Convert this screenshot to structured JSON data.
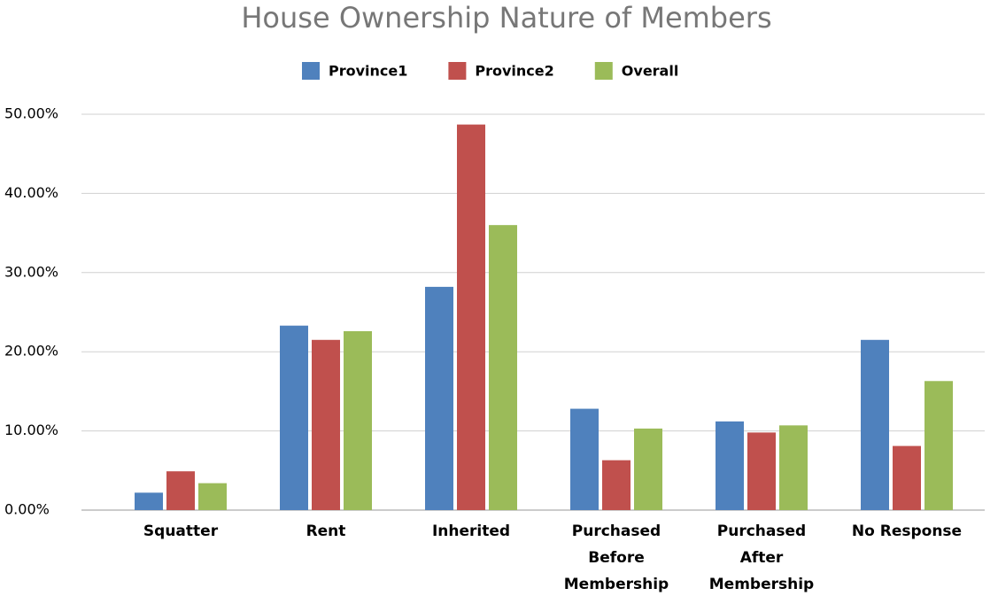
{
  "chart_data": {
    "type": "bar",
    "title": "House Ownership Nature of Members",
    "categories": [
      [
        "Squatter"
      ],
      [
        "Rent"
      ],
      [
        "Inherited"
      ],
      [
        "Purchased",
        "Before",
        "Membership"
      ],
      [
        "Purchased",
        "After",
        "Membership"
      ],
      [
        "No Response"
      ]
    ],
    "series": [
      {
        "name": "Province1",
        "color": "#4f81bd",
        "values": [
          2.2,
          23.3,
          28.2,
          12.8,
          11.2,
          21.5
        ]
      },
      {
        "name": "Province2",
        "color": "#c0504d",
        "values": [
          4.9,
          21.5,
          48.7,
          6.3,
          9.8,
          8.1
        ]
      },
      {
        "name": "Overall",
        "color": "#9bbb59",
        "values": [
          3.4,
          22.6,
          36.0,
          10.3,
          10.7,
          16.3
        ]
      }
    ],
    "ylim": [
      0,
      50
    ],
    "yticks": [
      {
        "value": 0,
        "label": "0.00%"
      },
      {
        "value": 10,
        "label": "10.00%"
      },
      {
        "value": 20,
        "label": "20.00%"
      },
      {
        "value": 30,
        "label": "30.00%"
      },
      {
        "value": 40,
        "label": "40.00%"
      },
      {
        "value": 50,
        "label": "50.00%"
      }
    ],
    "grid": true,
    "legend": "top"
  }
}
